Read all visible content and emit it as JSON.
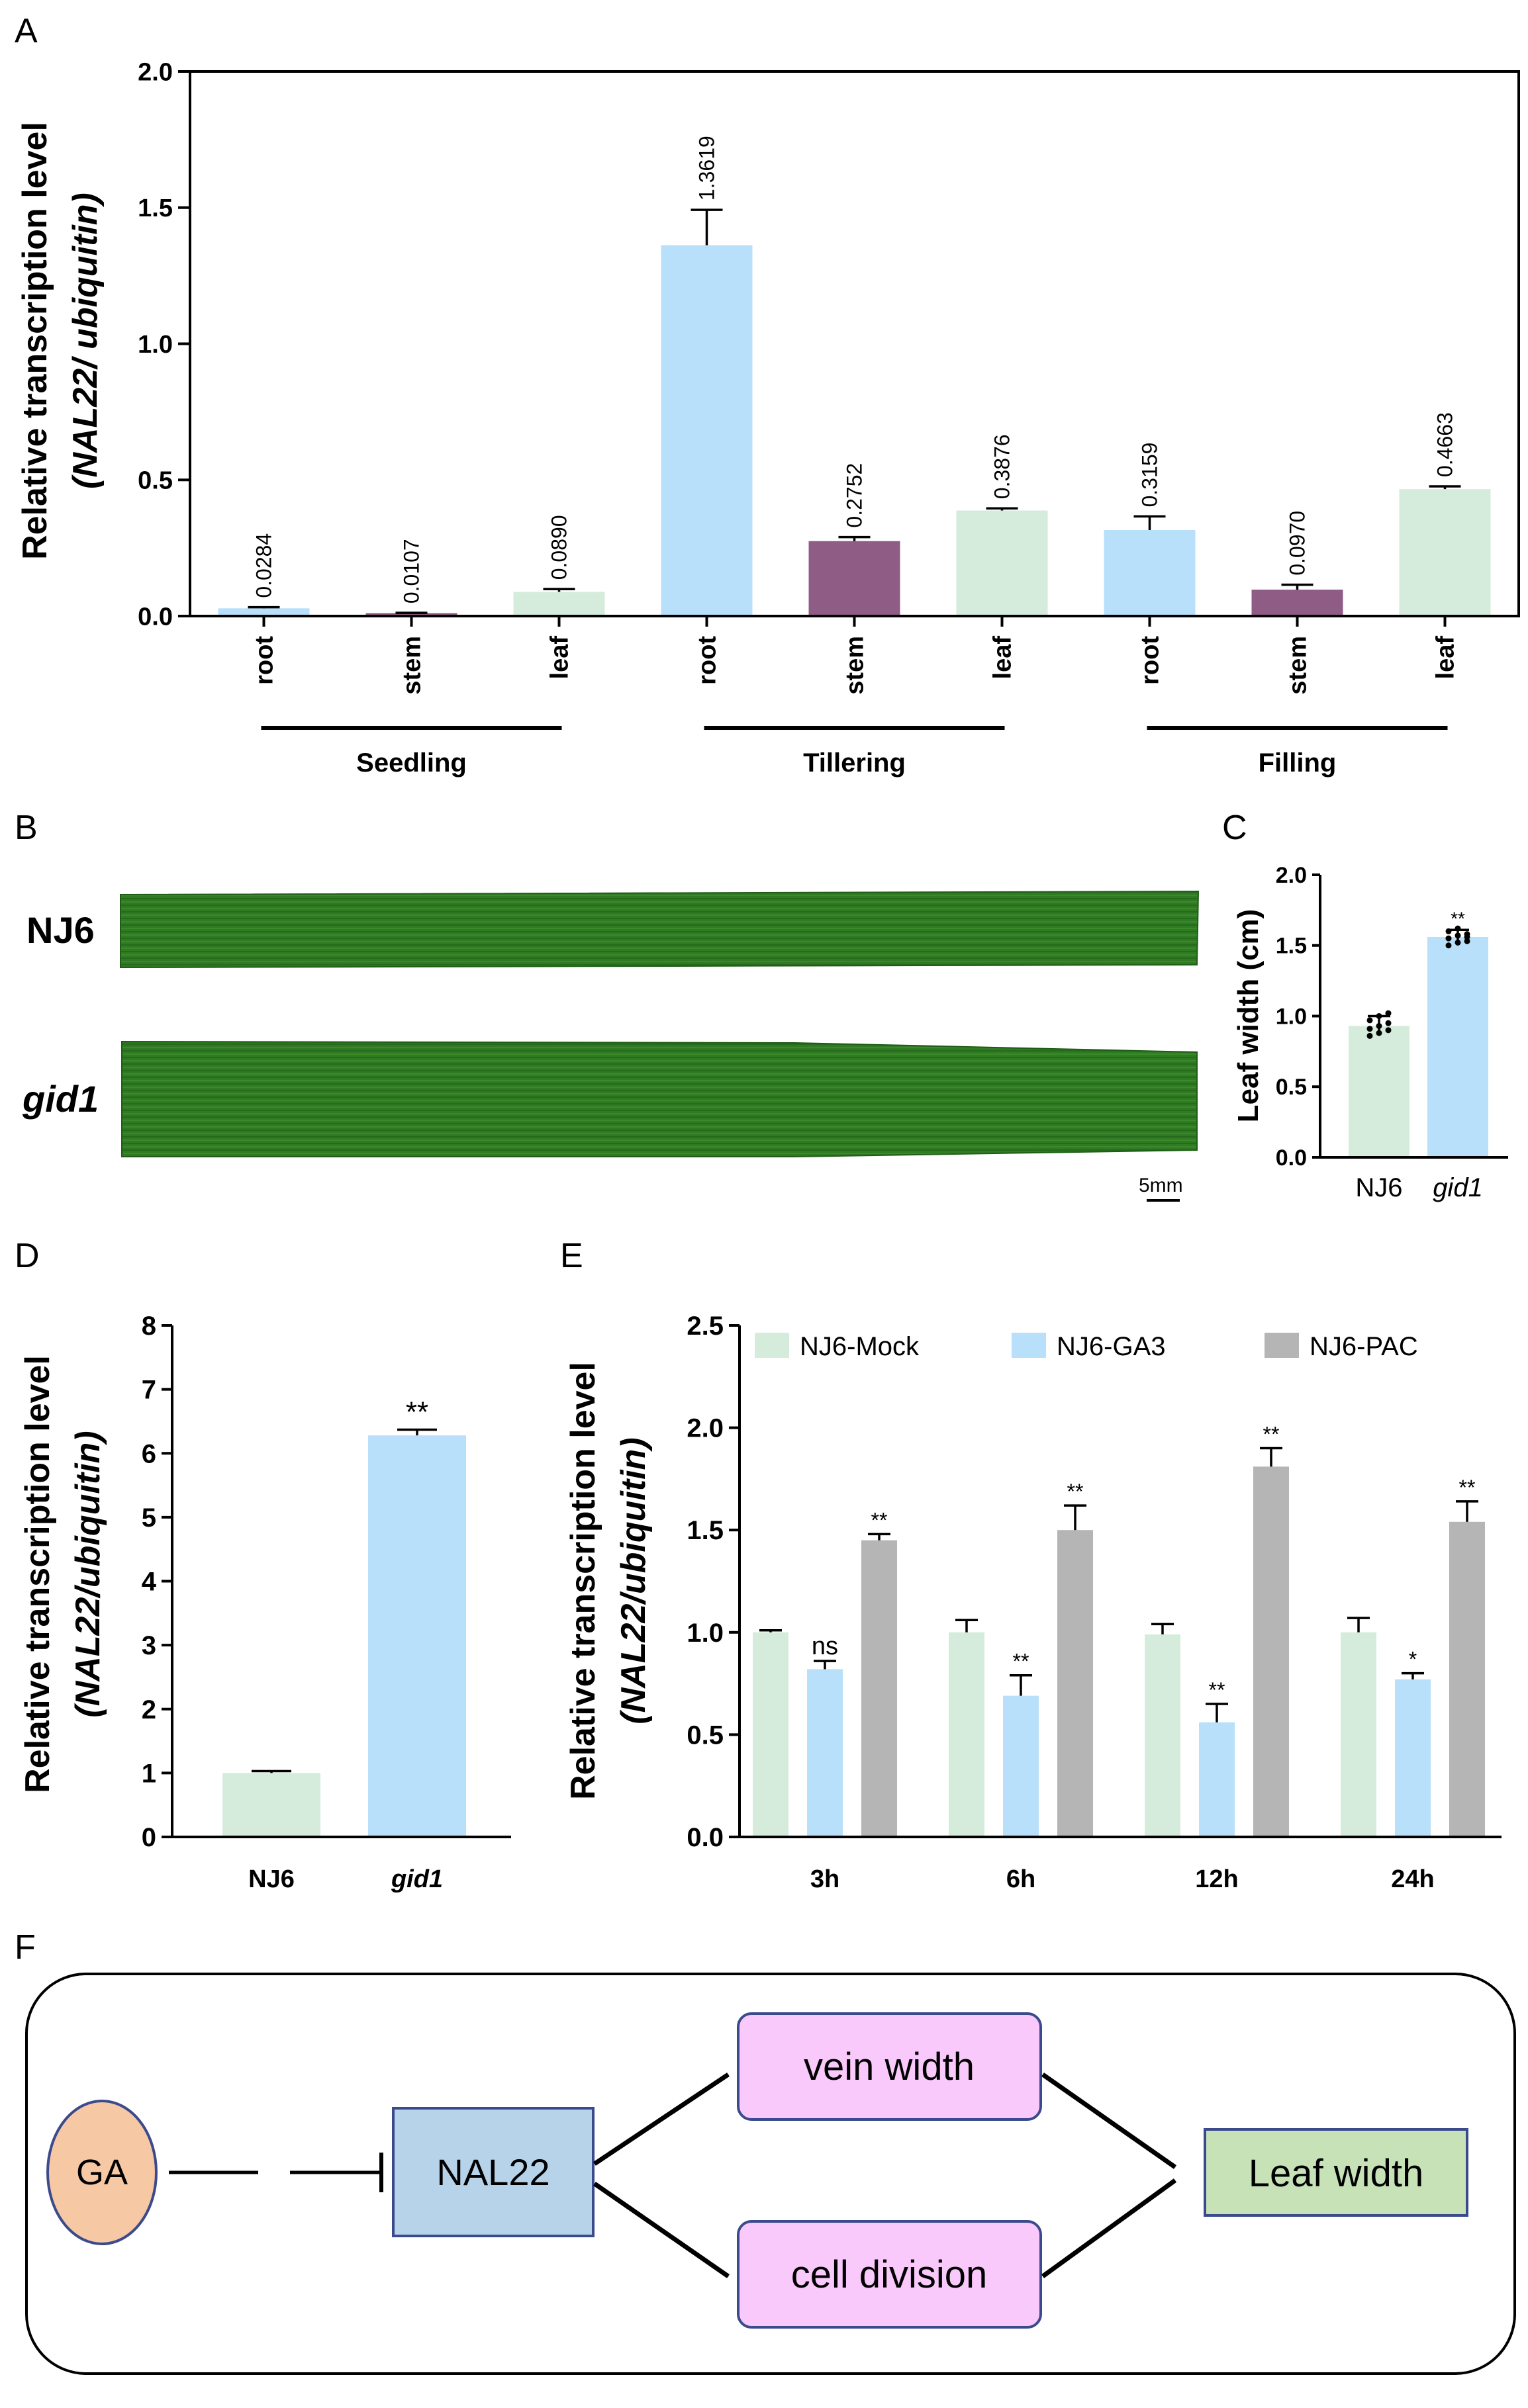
{
  "colors": {
    "green": "#d5ecdc",
    "blue": "#b8e0fa",
    "purple": "#8e5c85",
    "gray": "#b5b5b5",
    "leaf_green": "#2f7a22",
    "leaf_dark": "#1f5d16",
    "ga_fill": "#f6c8a4",
    "nal_fill": "#b6d3ea",
    "pink_fill": "#fac9fb",
    "leafw_fill": "#c8e2b8"
  },
  "panel_labels": {
    "A": "A",
    "B": "B",
    "C": "C",
    "D": "D",
    "E": "E",
    "F": "F"
  },
  "chart_data": [
    {
      "id": "A",
      "type": "bar",
      "ylabel_line1": "Relative  transcription level",
      "ylabel_line2": "(NAL22/ ubiquitin)",
      "ylim": [
        0,
        2.0
      ],
      "yticks": [
        "0.0",
        "0.5",
        "1.0",
        "1.5",
        "2.0"
      ],
      "ytick_values": [
        0,
        0.5,
        1.0,
        1.5,
        2.0
      ],
      "categories": [
        "root",
        "stem",
        "leaf",
        "root",
        "stem",
        "leaf",
        "root",
        "stem",
        "leaf"
      ],
      "values": [
        0.0284,
        0.0107,
        0.089,
        1.3619,
        0.2752,
        0.3876,
        0.3159,
        0.097,
        0.4663
      ],
      "errors": [
        0.004,
        0.001,
        0.01,
        0.13,
        0.015,
        0.008,
        0.05,
        0.018,
        0.01
      ],
      "value_labels": [
        "0.0284",
        "0.0107",
        "0.0890",
        "1.3619",
        "0.2752",
        "0.3876",
        "0.3159",
        "0.0970",
        "0.4663"
      ],
      "bar_colors": [
        "blue",
        "purple",
        "green",
        "blue",
        "purple",
        "green",
        "blue",
        "purple",
        "green"
      ],
      "groups": [
        {
          "label": "Seedling",
          "from": 0,
          "to": 2
        },
        {
          "label": "Tillering",
          "from": 3,
          "to": 5
        },
        {
          "label": "Filling",
          "from": 6,
          "to": 8
        }
      ]
    },
    {
      "id": "C",
      "type": "bar",
      "ylabel": "Leaf width (cm)",
      "ylim": [
        0,
        2.0
      ],
      "yticks": [
        "0.0",
        "0.5",
        "1.0",
        "1.5",
        "2.0"
      ],
      "ytick_values": [
        0,
        0.5,
        1.0,
        1.5,
        2.0
      ],
      "categories": [
        "NJ6",
        "gid1"
      ],
      "values": [
        0.93,
        1.56
      ],
      "errors": [
        0.07,
        0.05
      ],
      "bar_colors": [
        "green",
        "blue"
      ],
      "points": [
        [
          0.86,
          0.88,
          0.9,
          0.91,
          0.93,
          0.95,
          0.97,
          1.0,
          1.02
        ],
        [
          1.5,
          1.52,
          1.53,
          1.55,
          1.57,
          1.58,
          1.6,
          1.62,
          1.56
        ]
      ],
      "significance": [
        "",
        "**"
      ]
    },
    {
      "id": "D",
      "type": "bar",
      "ylabel_line1": "Relative  transcription level",
      "ylabel_line2": "(NAL22/ubiquitin)",
      "ylim": [
        0,
        8
      ],
      "yticks": [
        "0",
        "1",
        "2",
        "3",
        "4",
        "5",
        "6",
        "7",
        "8"
      ],
      "ytick_values": [
        0,
        1,
        2,
        3,
        4,
        5,
        6,
        7,
        8
      ],
      "categories": [
        "NJ6",
        "gid1"
      ],
      "values": [
        1.0,
        6.28
      ],
      "errors": [
        0.03,
        0.09
      ],
      "bar_colors": [
        "green",
        "blue"
      ],
      "significance": [
        "",
        "**"
      ]
    },
    {
      "id": "E",
      "type": "bar",
      "ylabel_line1": "Relative  transcription level",
      "ylabel_line2": "(NAL22/ubiquitin)",
      "ylim": [
        0,
        2.5
      ],
      "yticks": [
        "0.0",
        "0.5",
        "1.0",
        "1.5",
        "2.0",
        "2.5"
      ],
      "ytick_values": [
        0,
        0.5,
        1.0,
        1.5,
        2.0,
        2.5
      ],
      "categories": [
        "3h",
        "6h",
        "12h",
        "24h"
      ],
      "series": [
        {
          "name": "NJ6-Mock",
          "color": "green",
          "values": [
            1.0,
            1.0,
            0.99,
            1.0
          ],
          "errors": [
            0.01,
            0.06,
            0.05,
            0.07
          ],
          "significance": [
            "",
            "",
            "",
            ""
          ]
        },
        {
          "name": "NJ6-GA3",
          "color": "blue",
          "values": [
            0.82,
            0.69,
            0.56,
            0.77
          ],
          "errors": [
            0.04,
            0.1,
            0.09,
            0.03
          ],
          "significance": [
            "ns",
            "**",
            "**",
            "*"
          ]
        },
        {
          "name": "NJ6-PAC",
          "color": "gray",
          "values": [
            1.45,
            1.5,
            1.81,
            1.54
          ],
          "errors": [
            0.03,
            0.12,
            0.09,
            0.1
          ],
          "significance": [
            "**",
            "**",
            "**",
            "**"
          ]
        }
      ]
    }
  ],
  "panel_b": {
    "row1_label": "NJ6",
    "row2_label": "gid1",
    "scale_label": "5mm"
  },
  "diagram": {
    "ga": "GA",
    "nal22": "NAL22",
    "vein": "vein width",
    "cell": "cell division",
    "leafw": "Leaf width"
  }
}
